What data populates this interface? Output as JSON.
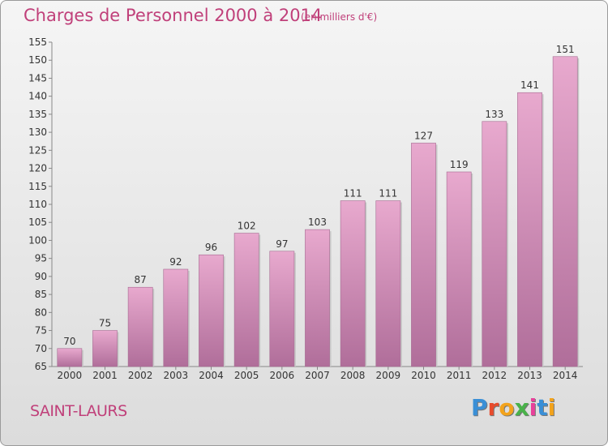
{
  "title": "Charges de Personnel 2000 à 2014",
  "unit_note": "(en milliers d'€)",
  "commune": "SAINT-LAURS",
  "logo_text": "Proxiti",
  "logo_colors": [
    "#3a8fd6",
    "#e84b2c",
    "#f3a31c",
    "#49b24a",
    "#e8409a",
    "#3a8fd6",
    "#f3a31c"
  ],
  "colors": {
    "title": "#c0407a",
    "bar_top": "#e8a9ce",
    "bar_bottom": "#b06e9a"
  },
  "chart_data": {
    "type": "bar",
    "title": "Charges de Personnel 2000 à 2014",
    "subtitle": "(en milliers d'€)",
    "categories": [
      "2000",
      "2001",
      "2002",
      "2003",
      "2004",
      "2005",
      "2006",
      "2007",
      "2008",
      "2009",
      "2010",
      "2011",
      "2012",
      "2013",
      "2014"
    ],
    "values": [
      70,
      75,
      87,
      92,
      96,
      102,
      97,
      103,
      111,
      111,
      127,
      119,
      133,
      141,
      151
    ],
    "ylim": [
      65,
      155
    ],
    "yticks": [
      65,
      70,
      75,
      80,
      85,
      90,
      95,
      100,
      105,
      110,
      115,
      120,
      125,
      130,
      135,
      140,
      145,
      150,
      155
    ],
    "xlabel": "",
    "ylabel": "",
    "grid": false
  }
}
